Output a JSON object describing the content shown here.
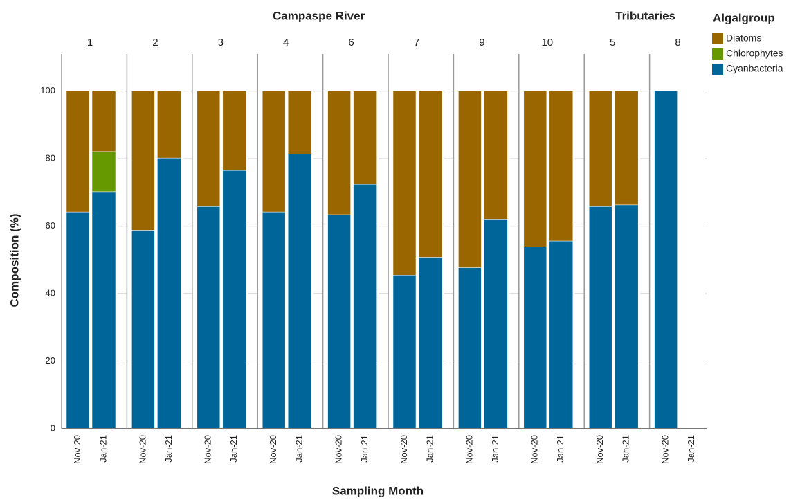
{
  "chart_data": {
    "type": "stacked-bar",
    "ylabel": "Composition (%)",
    "xlabel": "Sampling Month",
    "legend_title": "Algalgroup",
    "groups": [
      {
        "title": "Campaspe River",
        "panels": [
          "1",
          "2",
          "3",
          "4",
          "6",
          "7",
          "9",
          "10"
        ]
      },
      {
        "title": "Tributaries",
        "panels": [
          "5",
          "8"
        ]
      }
    ],
    "categories": [
      "Nov-20",
      "Jan-21"
    ],
    "series": [
      {
        "name": "Diatoms",
        "color": "#996600",
        "values": [
          [
            35.8,
            17.9
          ],
          [
            41.2,
            19.8
          ],
          [
            34.2,
            23.5
          ],
          [
            35.8,
            18.7
          ],
          [
            36.6,
            27.6
          ],
          [
            54.5,
            49.2
          ],
          [
            52.3,
            37.9
          ],
          [
            46.1,
            44.4
          ],
          [
            34.2,
            33.7
          ],
          [
            0,
            null
          ]
        ]
      },
      {
        "name": "Chlorophytes",
        "color": "#669900",
        "values": [
          [
            0,
            11.9
          ],
          [
            0,
            0
          ],
          [
            0,
            0
          ],
          [
            0,
            0
          ],
          [
            0,
            0
          ],
          [
            0,
            0
          ],
          [
            0,
            0
          ],
          [
            0,
            0
          ],
          [
            0,
            0
          ],
          [
            0,
            null
          ]
        ]
      },
      {
        "name": "Cyanbacteria",
        "color": "#006699",
        "values": [
          [
            64.2,
            70.2
          ],
          [
            58.8,
            80.2
          ],
          [
            65.8,
            76.5
          ],
          [
            64.2,
            81.3
          ],
          [
            63.4,
            72.4
          ],
          [
            45.5,
            50.8
          ],
          [
            47.7,
            62.1
          ],
          [
            53.9,
            55.6
          ],
          [
            65.8,
            66.3
          ],
          [
            100,
            null
          ]
        ]
      }
    ],
    "ylim": [
      0,
      111
    ],
    "yticks": [
      0,
      20,
      40,
      60,
      80,
      100
    ],
    "grid": true
  }
}
